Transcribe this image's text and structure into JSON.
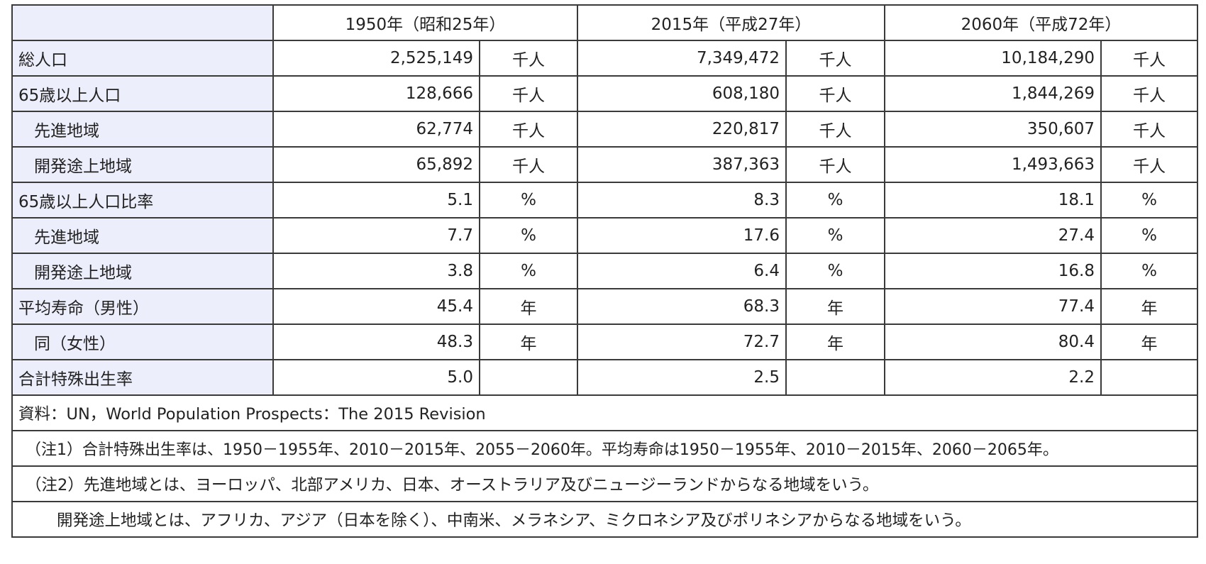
{
  "header": {
    "blank": "",
    "years": [
      "1950年（昭和25年）",
      "2015年（平成27年）",
      "2060年（平成72年）"
    ]
  },
  "rows": [
    {
      "label": "総人口",
      "indent": false,
      "cells": [
        {
          "value": "2,525,149",
          "unit": "千人"
        },
        {
          "value": "7,349,472",
          "unit": "千人"
        },
        {
          "value": "10,184,290",
          "unit": "千人"
        }
      ]
    },
    {
      "label": "65歳以上人口",
      "indent": false,
      "cells": [
        {
          "value": "128,666",
          "unit": "千人"
        },
        {
          "value": "608,180",
          "unit": "千人"
        },
        {
          "value": "1,844,269",
          "unit": "千人"
        }
      ]
    },
    {
      "label": "先進地域",
      "indent": true,
      "cells": [
        {
          "value": "62,774",
          "unit": "千人"
        },
        {
          "value": "220,817",
          "unit": "千人"
        },
        {
          "value": "350,607",
          "unit": "千人"
        }
      ]
    },
    {
      "label": "開発途上地域",
      "indent": true,
      "cells": [
        {
          "value": "65,892",
          "unit": "千人"
        },
        {
          "value": "387,363",
          "unit": "千人"
        },
        {
          "value": "1,493,663",
          "unit": "千人"
        }
      ]
    },
    {
      "label": "65歳以上人口比率",
      "indent": false,
      "cells": [
        {
          "value": "5.1",
          "unit": "%"
        },
        {
          "value": "8.3",
          "unit": "%"
        },
        {
          "value": "18.1",
          "unit": "%"
        }
      ]
    },
    {
      "label": "先進地域",
      "indent": true,
      "cells": [
        {
          "value": "7.7",
          "unit": "%"
        },
        {
          "value": "17.6",
          "unit": "%"
        },
        {
          "value": "27.4",
          "unit": "%"
        }
      ]
    },
    {
      "label": "開発途上地域",
      "indent": true,
      "cells": [
        {
          "value": "3.8",
          "unit": "%"
        },
        {
          "value": "6.4",
          "unit": "%"
        },
        {
          "value": "16.8",
          "unit": "%"
        }
      ]
    },
    {
      "label": "平均寿命（男性）",
      "indent": false,
      "cells": [
        {
          "value": "45.4",
          "unit": "年"
        },
        {
          "value": "68.3",
          "unit": "年"
        },
        {
          "value": "77.4",
          "unit": "年"
        }
      ]
    },
    {
      "label": "同（女性）",
      "indent": true,
      "cells": [
        {
          "value": "48.3",
          "unit": "年"
        },
        {
          "value": "72.7",
          "unit": "年"
        },
        {
          "value": "80.4",
          "unit": "年"
        }
      ]
    },
    {
      "label": "合計特殊出生率",
      "indent": false,
      "cells": [
        {
          "value": "5.0",
          "unit": ""
        },
        {
          "value": "2.5",
          "unit": ""
        },
        {
          "value": "2.2",
          "unit": ""
        }
      ]
    }
  ],
  "notes": {
    "source": "資料：UN，World Population Prospects：The 2015 Revision",
    "note1": "（注1）合計特殊出生率は、1950－1955年、2010－2015年、2055－2060年。平均寿命は1950－1955年、2010－2015年、2060－2065年。",
    "note2": "（注2）先進地域とは、ヨーロッパ、北部アメリカ、日本、オーストラリア及びニュージーランドからなる地域をいう。",
    "note3": "開発途上地域とは、アフリカ、アジア（日本を除く）、中南米、メラネシア、ミクロネシア及びポリネシアからなる地域をいう。"
  }
}
